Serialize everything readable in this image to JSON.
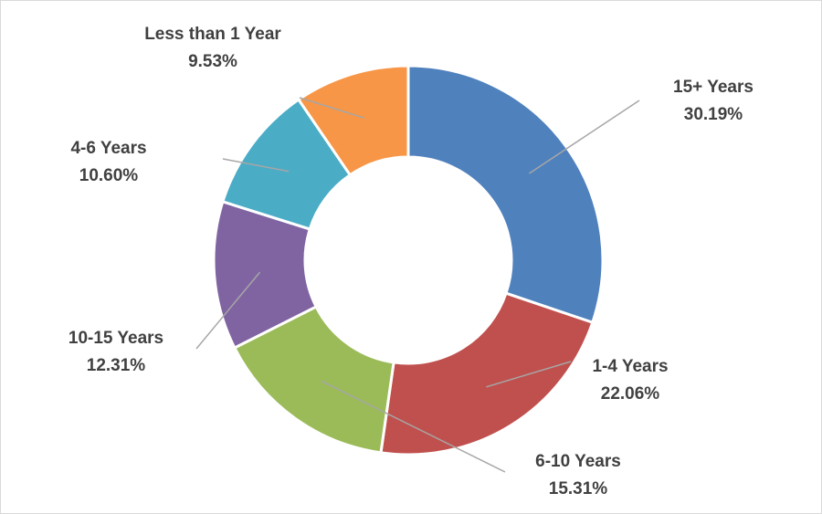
{
  "chart_data": {
    "type": "pie",
    "variant": "donut",
    "title": "",
    "legend": "none",
    "slices": [
      {
        "label": "15+ Years",
        "value": 30.19,
        "value_label": "30.19%",
        "color": "#4F81BD"
      },
      {
        "label": "1-4 Years",
        "value": 22.06,
        "value_label": "22.06%",
        "color": "#C0504D"
      },
      {
        "label": "6-10 Years",
        "value": 15.31,
        "value_label": "15.31%",
        "color": "#9BBB59"
      },
      {
        "label": "10-15 Years",
        "value": 12.31,
        "value_label": "12.31%",
        "color": "#8064A2"
      },
      {
        "label": "4-6 Years",
        "value": 10.6,
        "value_label": "10.60%",
        "color": "#4BACC6"
      },
      {
        "label": "Less than 1 Year",
        "value": 9.53,
        "value_label": "9.53%",
        "color": "#F79646"
      }
    ]
  }
}
